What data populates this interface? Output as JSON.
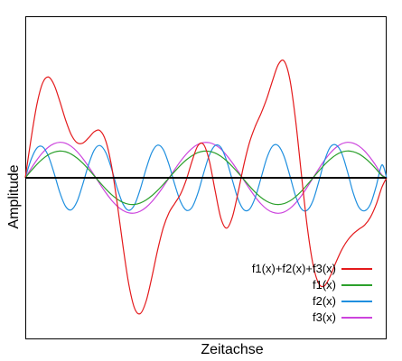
{
  "chart_data": {
    "type": "line",
    "xlabel": "Zeitachse",
    "ylabel": "Amplitude",
    "xlim": [
      0,
      12.566
    ],
    "ylim": [
      -2.35,
      2.35
    ],
    "grid": false,
    "legend_position": "bottom-right",
    "zero_line": true,
    "series": [
      {
        "name": "f1(x)+f2(x)+f3(x)",
        "color": "#e41a1c",
        "x": [
          0,
          0.2,
          0.4,
          0.6,
          0.8,
          1.0,
          1.2,
          1.4,
          1.6,
          1.8,
          2.0,
          2.2,
          2.4,
          2.6,
          2.8,
          3.0,
          3.2,
          3.4,
          3.6,
          3.8,
          4.0,
          4.2,
          4.4,
          4.6,
          4.8,
          5.0,
          5.2,
          5.4,
          5.6,
          5.8,
          6.0,
          6.2,
          6.4,
          6.6,
          6.8,
          7.0,
          7.2,
          7.4,
          7.6,
          7.8,
          8.0,
          8.2,
          8.4,
          8.6,
          8.8,
          9.0,
          9.2,
          9.4,
          9.6,
          9.8,
          10.0,
          10.2,
          10.4,
          10.6,
          10.8,
          11.0,
          11.2,
          11.4,
          11.6,
          11.8,
          12.0,
          12.2,
          12.4,
          12.566
        ],
        "y": [
          0,
          0.564,
          1.06,
          1.376,
          1.467,
          1.354,
          1.114,
          0.843,
          0.625,
          0.51,
          0.505,
          0.58,
          0.671,
          0.685,
          0.534,
          0.171,
          -0.383,
          -1.002,
          -1.55,
          -1.898,
          -1.975,
          -1.797,
          -1.449,
          -1.055,
          -0.725,
          -0.506,
          -0.371,
          -0.237,
          -0.027,
          0.244,
          0.465,
          0.485,
          0.246,
          -0.184,
          -0.585,
          -0.733,
          -0.572,
          -0.213,
          0.188,
          0.519,
          0.752,
          0.938,
          1.154,
          1.416,
          1.648,
          1.699,
          1.432,
          0.837,
          0.057,
          -0.695,
          -1.248,
          -1.535,
          -1.573,
          -1.435,
          -1.233,
          -1.051,
          -0.913,
          -0.816,
          -0.748,
          -0.688,
          -0.575,
          -0.39,
          -0.139,
          0
        ]
      },
      {
        "name": "f1(x)",
        "color": "#2ca02c",
        "x": [
          0,
          0.2,
          0.4,
          0.6,
          0.8,
          1.0,
          1.2,
          1.4,
          1.6,
          1.8,
          2.0,
          2.2,
          2.4,
          2.6,
          2.8,
          3.0,
          3.2,
          3.4,
          3.6,
          3.8,
          4.0,
          4.2,
          4.4,
          4.6,
          4.8,
          5.0,
          5.2,
          5.4,
          5.6,
          5.8,
          6.0,
          6.2,
          6.4,
          6.6,
          6.8,
          7.0,
          7.2,
          7.4,
          7.6,
          7.8,
          8.0,
          8.2,
          8.4,
          8.6,
          8.8,
          9.0,
          9.2,
          9.4,
          9.6,
          9.8,
          10.0,
          10.2,
          10.4,
          10.6,
          10.8,
          11.0,
          11.2,
          11.4,
          11.6,
          11.8,
          12.0,
          12.2,
          12.4,
          12.566
        ],
        "y": [
          0,
          0.1,
          0.193,
          0.273,
          0.335,
          0.374,
          0.389,
          0.379,
          0.344,
          0.287,
          0.212,
          0.123,
          0.027,
          -0.071,
          -0.163,
          -0.245,
          -0.312,
          -0.359,
          -0.385,
          -0.387,
          -0.366,
          -0.323,
          -0.261,
          -0.183,
          -0.095,
          -0.001,
          0.094,
          0.183,
          0.261,
          0.322,
          0.366,
          0.387,
          0.385,
          0.36,
          0.313,
          0.246,
          0.164,
          0.072,
          -0.025,
          -0.122,
          -0.211,
          -0.287,
          -0.343,
          -0.378,
          -0.389,
          -0.375,
          -0.337,
          -0.275,
          -0.196,
          -0.103,
          -0.004,
          0.095,
          0.187,
          0.268,
          0.332,
          0.373,
          0.39,
          0.38,
          0.347,
          0.29,
          0.216,
          0.127,
          0.031,
          0
        ]
      },
      {
        "name": "f2(x)",
        "color": "#1f8fdf",
        "x": [
          0,
          0.2,
          0.4,
          0.6,
          0.8,
          1.0,
          1.2,
          1.4,
          1.6,
          1.8,
          2.0,
          2.2,
          2.4,
          2.6,
          2.8,
          3.0,
          3.2,
          3.4,
          3.6,
          3.8,
          4.0,
          4.2,
          4.4,
          4.6,
          4.8,
          5.0,
          5.2,
          5.4,
          5.6,
          5.8,
          6.0,
          6.2,
          6.4,
          6.6,
          6.8,
          7.0,
          7.2,
          7.4,
          7.6,
          7.8,
          8.0,
          8.2,
          8.4,
          8.6,
          8.8,
          9.0,
          9.2,
          9.4,
          9.6,
          9.8,
          10.0,
          10.2,
          10.4,
          10.6,
          10.8,
          11.0,
          11.2,
          11.4,
          11.6,
          11.8,
          12.0,
          12.2,
          12.4,
          12.566
        ],
        "y": [
          0,
          0.264,
          0.431,
          0.451,
          0.319,
          0.07,
          -0.213,
          -0.415,
          -0.466,
          -0.345,
          -0.092,
          0.191,
          0.405,
          0.469,
          0.366,
          0.13,
          -0.156,
          -0.383,
          -0.474,
          -0.392,
          -0.162,
          0.128,
          0.368,
          0.475,
          0.41,
          0.189,
          -0.101,
          -0.348,
          -0.472,
          -0.429,
          -0.226,
          0.064,
          0.329,
          0.47,
          0.443,
          0.252,
          -0.033,
          -0.31,
          -0.465,
          -0.456,
          -0.283,
          0.0,
          0.288,
          0.461,
          0.465,
          0.31,
          0.032,
          -0.265,
          -0.451,
          -0.473,
          -0.338,
          -0.065,
          0.24,
          0.442,
          0.478,
          0.362,
          0.095,
          -0.215,
          -0.428,
          -0.48,
          -0.386,
          -0.127,
          0.187,
          0
        ]
      },
      {
        "name": "f3(x)",
        "color": "#cc44dd",
        "x": [
          0,
          0.2,
          0.4,
          0.6,
          0.8,
          1.0,
          1.2,
          1.4,
          1.6,
          1.8,
          2.0,
          2.2,
          2.4,
          2.6,
          2.8,
          3.0,
          3.2,
          3.4,
          3.6,
          3.8,
          4.0,
          4.2,
          4.4,
          4.6,
          4.8,
          5.0,
          5.2,
          5.4,
          5.6,
          5.8,
          6.0,
          6.2,
          6.4,
          6.6,
          6.8,
          7.0,
          7.2,
          7.4,
          7.6,
          7.8,
          8.0,
          8.2,
          8.4,
          8.6,
          8.8,
          9.0,
          9.2,
          9.4,
          9.6,
          9.8,
          10.0,
          10.2,
          10.4,
          10.6,
          10.8,
          11.0,
          11.2,
          11.4,
          11.6,
          11.8,
          12.0,
          12.2,
          12.4,
          12.566
        ],
        "y": [
          0,
          0.134,
          0.258,
          0.364,
          0.445,
          0.496,
          0.516,
          0.503,
          0.457,
          0.381,
          0.281,
          0.163,
          0.036,
          -0.094,
          -0.217,
          -0.326,
          -0.414,
          -0.476,
          -0.51,
          -0.513,
          -0.486,
          -0.43,
          -0.348,
          -0.245,
          -0.128,
          -0.002,
          0.124,
          0.242,
          0.345,
          0.428,
          0.486,
          0.513,
          0.511,
          0.479,
          0.419,
          0.327,
          0.218,
          0.095,
          -0.034,
          -0.161,
          -0.28,
          -0.381,
          -0.457,
          -0.502,
          -0.516,
          -0.498,
          -0.447,
          -0.367,
          -0.262,
          -0.139,
          -0.007,
          0.127,
          0.251,
          0.358,
          0.44,
          0.494,
          0.516,
          0.505,
          0.462,
          0.39,
          0.29,
          0.172,
          0.043,
          0
        ]
      }
    ]
  }
}
